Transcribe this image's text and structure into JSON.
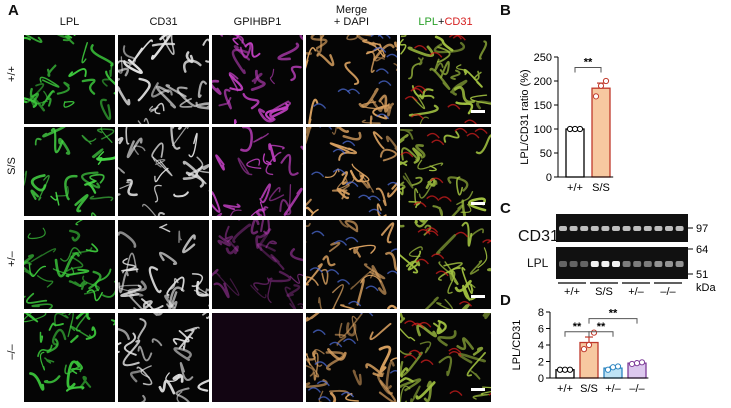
{
  "panels": {
    "a": "A",
    "b": "B",
    "c": "C",
    "d": "D"
  },
  "micrograph": {
    "columns": [
      "LPL",
      "CD31",
      "GPIHBP1",
      "Merge\n+ DAPI",
      ""
    ],
    "merge_line1": "Merge",
    "merge_line2": "+ DAPI",
    "overlay_lpl": "LPL",
    "overlay_plus": "+",
    "overlay_cd31": "CD31",
    "rows": [
      "+/+",
      "S/S",
      "+/–",
      "–/–"
    ],
    "colors": {
      "lpl": "#3cc83c",
      "cd31": "#e0e0e0",
      "gpihbp1": "#c040c0",
      "merge": "#d8a060",
      "overlay": "#a0c040",
      "red": "#e02020"
    }
  },
  "panel_b_text": {
    "ylabel": "LPL/CD31 ratio (%)",
    "sig": "**"
  },
  "panel_c_text": {
    "cd31": "CD31",
    "lpl": "LPL",
    "mw_97": "97",
    "mw_64": "64",
    "mw_51": "51",
    "kda": "kDa",
    "lanes": [
      "+/+",
      "S/S",
      "+/–",
      "–/–"
    ]
  },
  "panel_d_text": {
    "ylabel": "LPL/CD31",
    "sig1": "**",
    "sig2": "**",
    "sig3": "**"
  },
  "chart_data": [
    {
      "type": "bar",
      "panel": "B",
      "categories": [
        "+/+",
        "S/S"
      ],
      "values": [
        100,
        185
      ],
      "points": [
        [
          100,
          100,
          100
        ],
        [
          168,
          190,
          200
        ]
      ],
      "ylabel": "LPL/CD31 ratio (%)",
      "ylim": [
        0,
        250
      ],
      "yticks": [
        0,
        50,
        100,
        150,
        200,
        250
      ],
      "bar_colors": [
        "#ffffff",
        "#f7c8a0"
      ],
      "edge_colors": [
        "#000000",
        "#c0392b"
      ]
    },
    {
      "type": "bar",
      "panel": "D",
      "categories": [
        "+/+",
        "S/S",
        "+/–",
        "–/–"
      ],
      "values": [
        1.0,
        4.3,
        1.2,
        1.8
      ],
      "points": [
        [
          1.0,
          1.0,
          1.0
        ],
        [
          3.5,
          4.0,
          5.5
        ],
        [
          1.0,
          1.3,
          1.4
        ],
        [
          1.7,
          1.8,
          1.9
        ]
      ],
      "ylabel": "LPL/CD31",
      "ylim": [
        0,
        8
      ],
      "yticks": [
        0,
        2,
        4,
        6,
        8
      ],
      "bar_colors": [
        "#ffffff",
        "#f7c8a0",
        "#bfe3f5",
        "#dcc8ee"
      ],
      "edge_colors": [
        "#000000",
        "#c0392b",
        "#2e86c1",
        "#7d3c98"
      ]
    }
  ]
}
